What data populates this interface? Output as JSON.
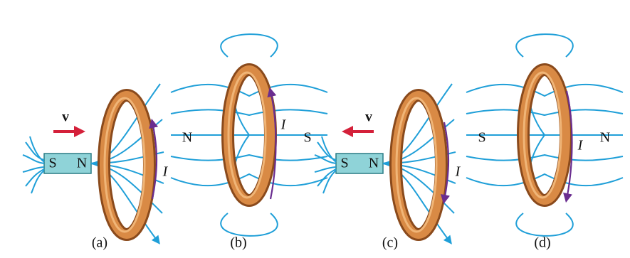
{
  "panels": [
    {
      "caption": "(a)",
      "velocity": "v",
      "magnet": {
        "south": "S",
        "north": "N"
      },
      "current": "I"
    },
    {
      "caption": "(b)",
      "left_pole": "N",
      "right_pole": "S",
      "current": "I"
    },
    {
      "caption": "(c)",
      "velocity": "v",
      "magnet": {
        "south": "S",
        "north": "N"
      },
      "current": "I"
    },
    {
      "caption": "(d)",
      "left_pole": "S",
      "right_pole": "N",
      "current": "I"
    }
  ]
}
